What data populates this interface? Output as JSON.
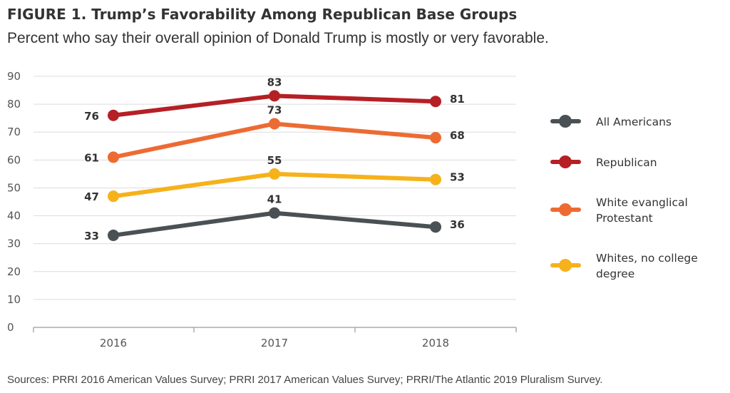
{
  "header": {
    "title": "FIGURE 1.  Trump’s Favorability Among Republican Base Groups",
    "subtitle": "Percent who say their overall opinion of Donald Trump is mostly or very favorable."
  },
  "footer": {
    "source": "Sources: PRRI 2016 American Values Survey; PRRI 2017 American Values Survey; PRRI/The Atlantic 2019 Pluralism Survey."
  },
  "chart_data": {
    "type": "line",
    "title": "FIGURE 1.  Trump’s Favorability Among Republican Base Groups",
    "subtitle": "Percent who say their overall opinion of Donald Trump is mostly or very favorable.",
    "xlabel": "",
    "ylabel": "",
    "categories": [
      "2016",
      "2017",
      "2018"
    ],
    "ylim": [
      0,
      90
    ],
    "yticks": [
      0,
      10,
      20,
      30,
      40,
      50,
      60,
      70,
      80,
      90
    ],
    "grid": true,
    "legend_position": "right",
    "series": [
      {
        "name": "All Americans",
        "legend_lines": [
          "All Americans"
        ],
        "values": [
          33,
          41,
          36
        ],
        "color": "#4a5155"
      },
      {
        "name": "Republican",
        "legend_lines": [
          "Republican"
        ],
        "values": [
          76,
          83,
          81
        ],
        "color": "#b52025"
      },
      {
        "name": "White evanglical Protestant",
        "legend_lines": [
          "White evanglical",
          "Protestant"
        ],
        "values": [
          61,
          73,
          68
        ],
        "color": "#ed6b33"
      },
      {
        "name": "Whites, no college degree",
        "legend_lines": [
          "Whites, no college",
          "degree"
        ],
        "values": [
          47,
          55,
          53
        ],
        "color": "#f5b21b"
      }
    ]
  }
}
